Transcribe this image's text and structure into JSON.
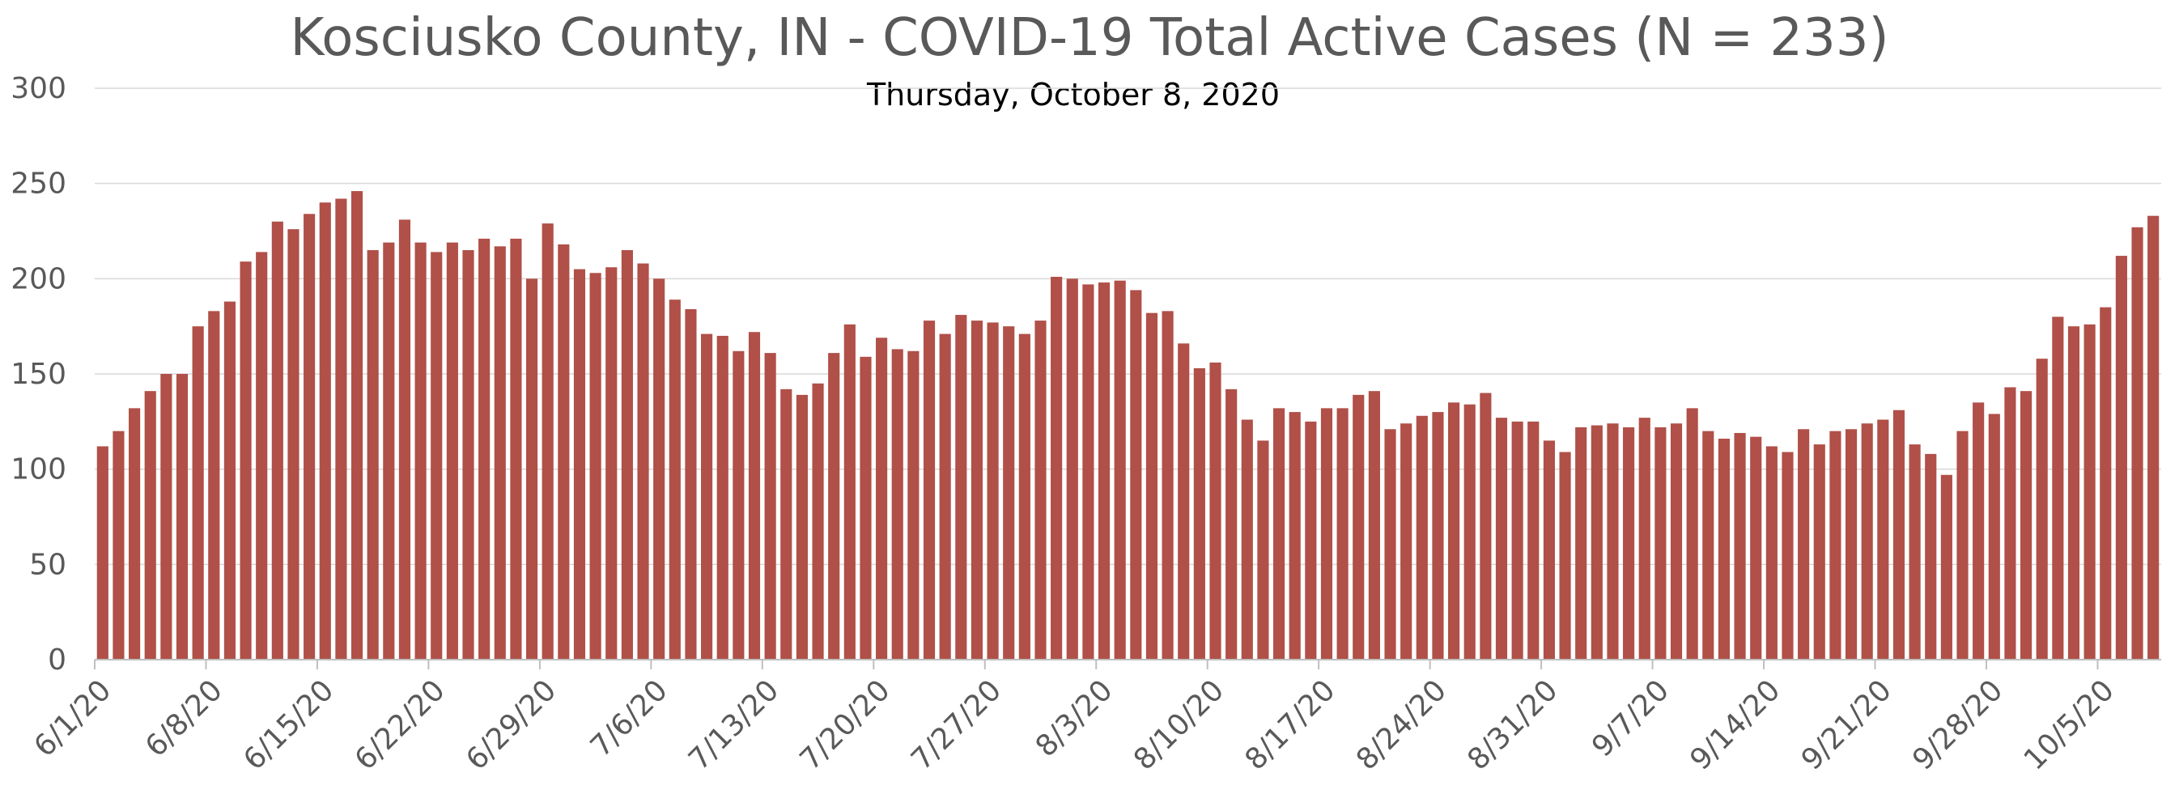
{
  "chart_data": {
    "type": "bar",
    "title": "Kosciusko County, IN - COVID-19 Total Active Cases (N = 233)",
    "subtitle": "Thursday, October 8, 2020",
    "xlabel": "",
    "ylabel": "",
    "ylim": [
      0,
      300
    ],
    "yticks": [
      0,
      50,
      100,
      150,
      200,
      250,
      300
    ],
    "xtick_labels": [
      "6/1/20",
      "6/8/20",
      "6/15/20",
      "6/22/20",
      "6/29/20",
      "7/6/20",
      "7/13/20",
      "7/20/20",
      "7/27/20",
      "8/3/20",
      "8/10/20",
      "8/17/20",
      "8/24/20",
      "8/31/20",
      "9/7/20",
      "9/14/20",
      "9/21/20",
      "9/28/20",
      "10/5/20"
    ],
    "x_start": "6/1/20",
    "grid": true,
    "legend": "none",
    "bar_color": "#b05048",
    "values": [
      112,
      120,
      132,
      141,
      150,
      150,
      175,
      183,
      188,
      209,
      214,
      230,
      226,
      234,
      240,
      242,
      246,
      215,
      219,
      231,
      219,
      214,
      219,
      215,
      221,
      217,
      221,
      200,
      229,
      218,
      205,
      203,
      206,
      215,
      208,
      200,
      189,
      184,
      171,
      170,
      162,
      172,
      161,
      142,
      139,
      145,
      161,
      176,
      159,
      169,
      163,
      162,
      178,
      171,
      181,
      178,
      177,
      175,
      171,
      178,
      201,
      200,
      197,
      198,
      199,
      194,
      182,
      183,
      166,
      153,
      156,
      142,
      126,
      115,
      132,
      130,
      125,
      132,
      132,
      139,
      141,
      121,
      124,
      128,
      130,
      135,
      134,
      140,
      127,
      125,
      125,
      115,
      109,
      122,
      123,
      124,
      122,
      127,
      122,
      124,
      132,
      120,
      116,
      119,
      117,
      112,
      109,
      121,
      113,
      120,
      121,
      124,
      126,
      131,
      113,
      108,
      97,
      120,
      135,
      129,
      143,
      141,
      158,
      180,
      175,
      176,
      185,
      212,
      227,
      233
    ]
  }
}
